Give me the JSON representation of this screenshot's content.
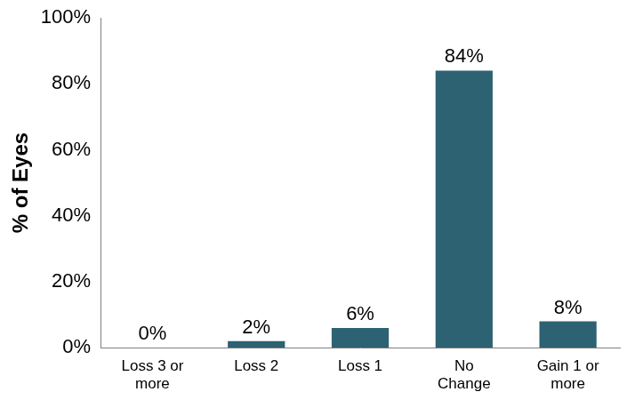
{
  "chart_data": {
    "type": "bar",
    "y_label": "% of Eyes",
    "categories": [
      "Loss 3 or\nmore",
      "Loss 2",
      "Loss 1",
      "No\nChange",
      "Gain 1 or\nmore"
    ],
    "values": [
      0,
      2,
      6,
      84,
      8
    ],
    "value_labels": [
      "0%",
      "2%",
      "6%",
      "84%",
      "8%"
    ],
    "data_labels": true,
    "color": "#2c6272",
    "ylim": [
      0,
      100
    ],
    "yticks": [
      {
        "value": 0,
        "label": "0%"
      },
      {
        "value": 20,
        "label": "20%"
      },
      {
        "value": 40,
        "label": "40%"
      },
      {
        "value": 60,
        "label": "60%"
      },
      {
        "value": 80,
        "label": "80%"
      },
      {
        "value": 100,
        "label": "100%"
      }
    ],
    "grid": false
  }
}
